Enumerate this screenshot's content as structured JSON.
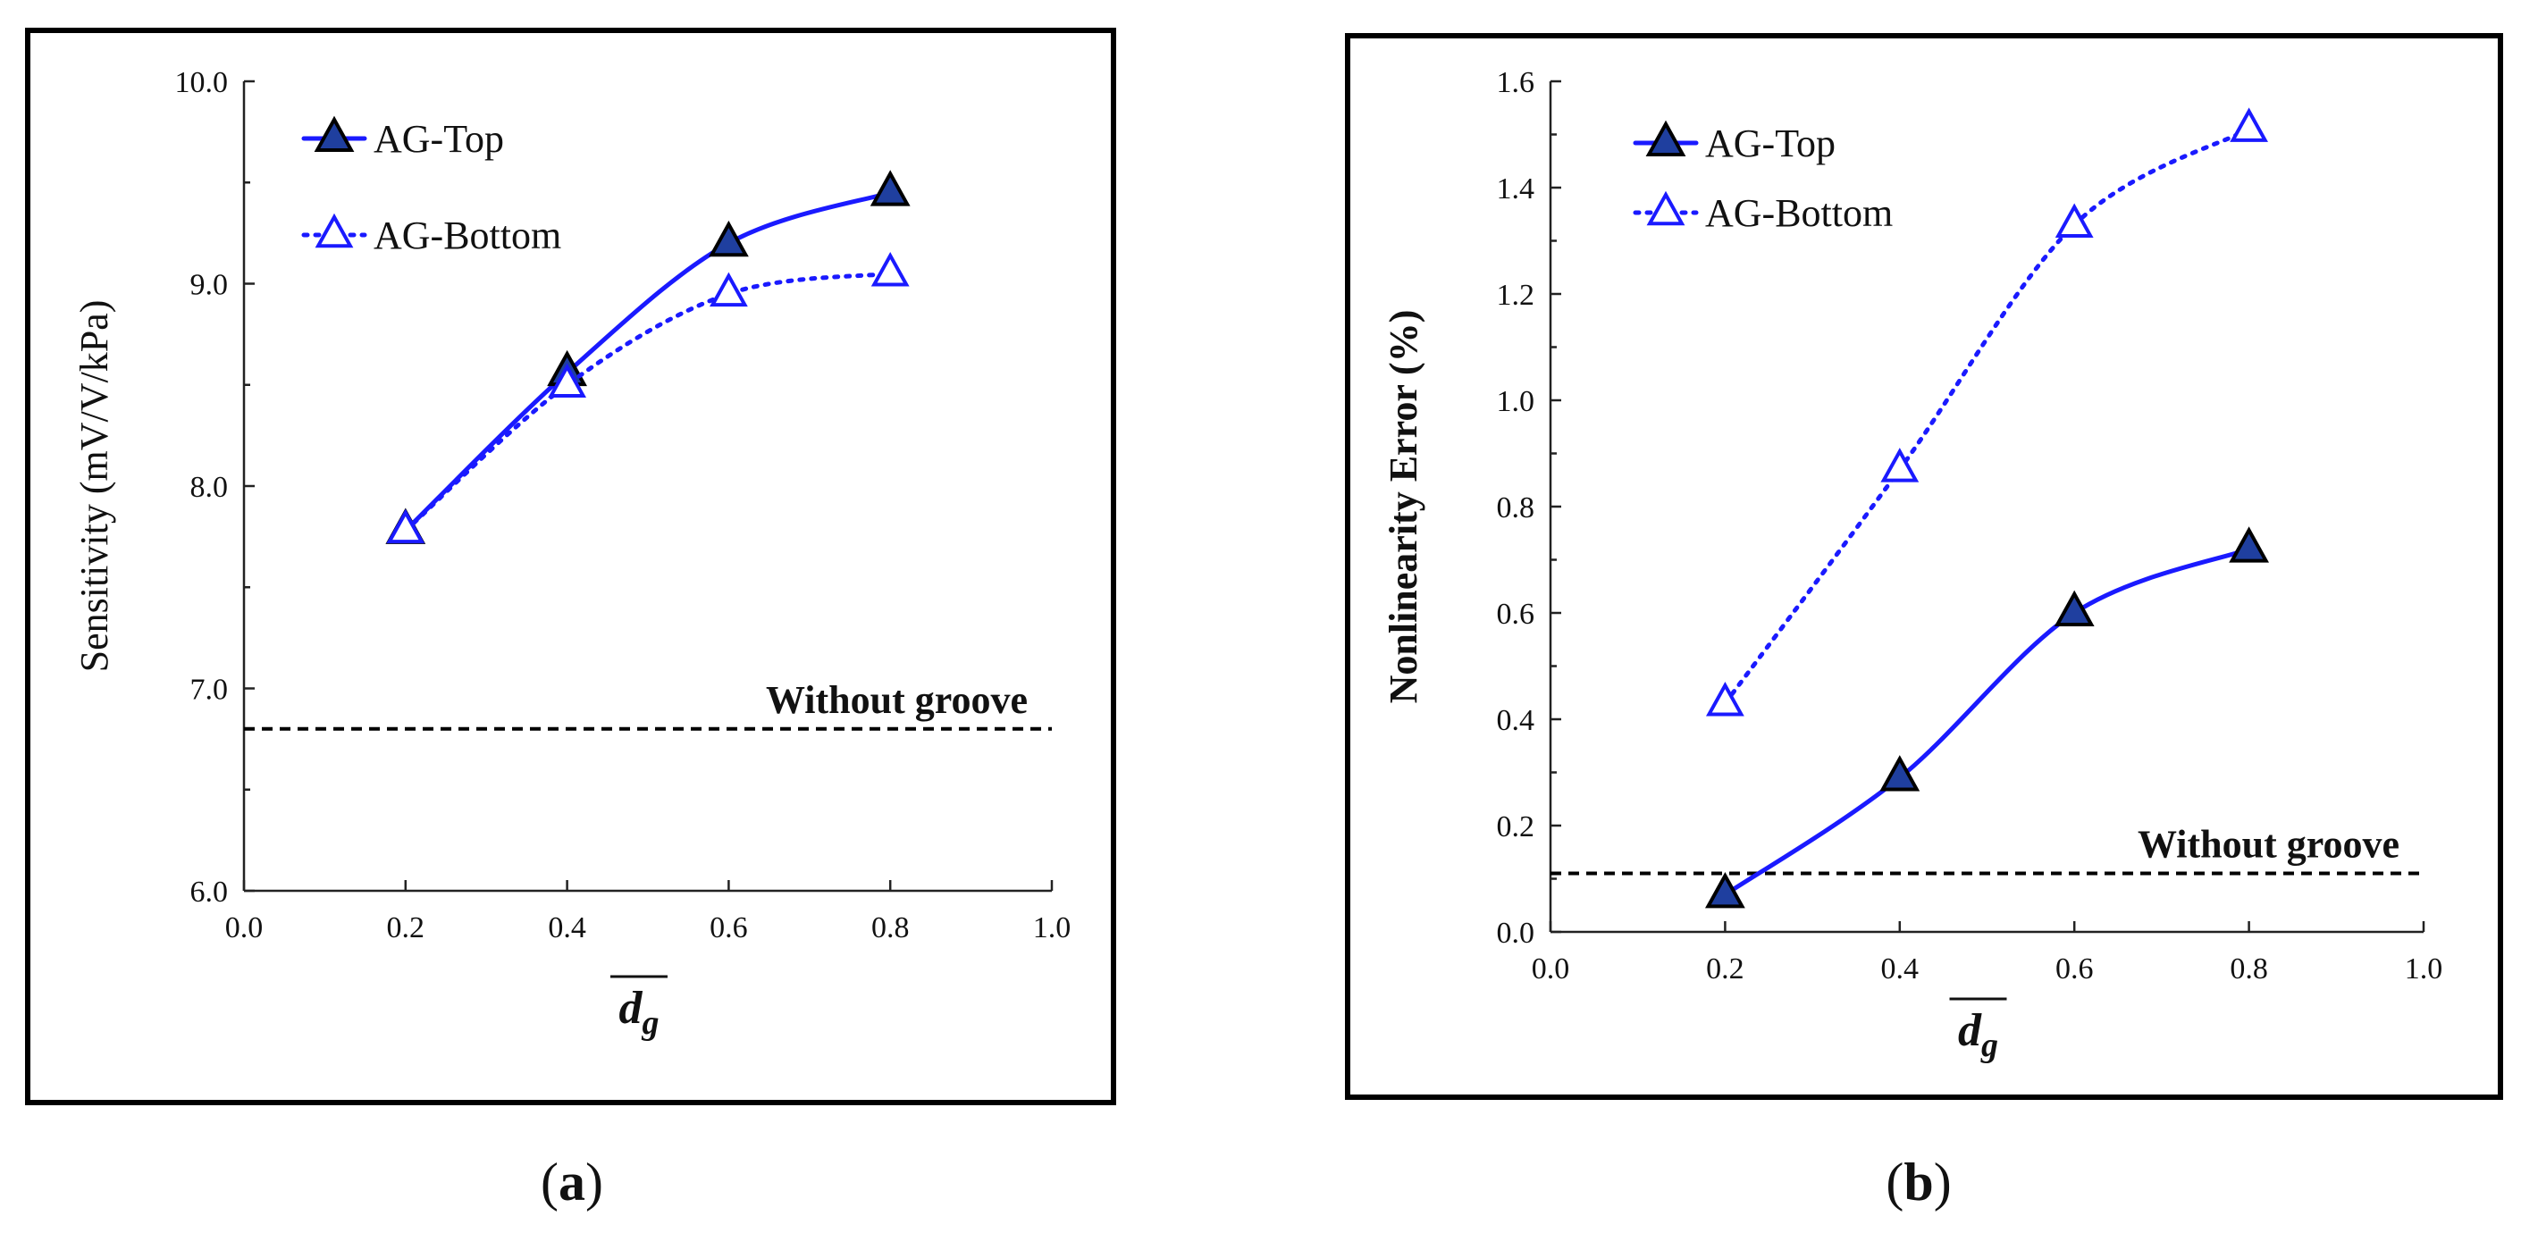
{
  "colors": {
    "series": "#1a1aff",
    "marker_fill": "#1f3f9f",
    "reference": "#000000"
  },
  "chart_data": [
    {
      "id": "a",
      "type": "line",
      "caption_open": "(",
      "caption_letter": "a",
      "caption_close": ")",
      "ylabel": "Sensitivity (mV/V/kPa)",
      "xlabel": "d",
      "xlabel_sub": "g",
      "xlim": [
        0.0,
        1.0
      ],
      "ylim": [
        6.0,
        10.0
      ],
      "xticks": [
        0.0,
        0.2,
        0.4,
        0.6,
        0.8,
        1.0
      ],
      "yticks": [
        6.0,
        7.0,
        8.0,
        9.0,
        10.0
      ],
      "xtick_labels": [
        "0.0",
        "0.2",
        "0.4",
        "0.6",
        "0.8",
        "1.0"
      ],
      "ytick_labels": [
        "6.0",
        "7.0",
        "8.0",
        "9.0",
        "10.0"
      ],
      "legend_position": "top-left",
      "series": [
        {
          "name": "AG-Top",
          "style": "solid",
          "marker": "filled-triangle",
          "x": [
            0.2,
            0.4,
            0.6,
            0.8
          ],
          "values": [
            7.78,
            8.56,
            9.2,
            9.45
          ]
        },
        {
          "name": "AG-Bottom",
          "style": "dotted",
          "marker": "open-triangle",
          "x": [
            0.2,
            0.4,
            0.6,
            0.8
          ],
          "values": [
            7.78,
            8.5,
            8.95,
            9.05
          ]
        }
      ],
      "reference": {
        "label": "Without groove",
        "value": 6.8
      }
    },
    {
      "id": "b",
      "type": "line",
      "caption_open": "(",
      "caption_letter": "b",
      "caption_close": ")",
      "ylabel": "Nonlinearity Error (%)",
      "xlabel": "d",
      "xlabel_sub": "g",
      "xlim": [
        0.0,
        1.0
      ],
      "ylim": [
        0.0,
        1.6
      ],
      "xticks": [
        0.0,
        0.2,
        0.4,
        0.6,
        0.8,
        1.0
      ],
      "yticks": [
        0.0,
        0.2,
        0.4,
        0.6,
        0.8,
        1.0,
        1.2,
        1.4,
        1.6
      ],
      "xtick_labels": [
        "0.0",
        "0.2",
        "0.4",
        "0.6",
        "0.8",
        "1.0"
      ],
      "ytick_labels": [
        "0.0",
        "0.2",
        "0.4",
        "0.6",
        "0.8",
        "1.0",
        "1.2",
        "1.4",
        "1.6"
      ],
      "legend_position": "top-left",
      "series": [
        {
          "name": "AG-Top",
          "style": "solid",
          "marker": "filled-triangle",
          "x": [
            0.2,
            0.4,
            0.6,
            0.8
          ],
          "values": [
            0.07,
            0.29,
            0.6,
            0.72
          ]
        },
        {
          "name": "AG-Bottom",
          "style": "dotted",
          "marker": "open-triangle",
          "x": [
            0.2,
            0.4,
            0.6,
            0.8
          ],
          "values": [
            0.43,
            0.87,
            1.33,
            1.51
          ]
        }
      ],
      "reference": {
        "label": "Without groove",
        "value": 0.11
      }
    }
  ]
}
